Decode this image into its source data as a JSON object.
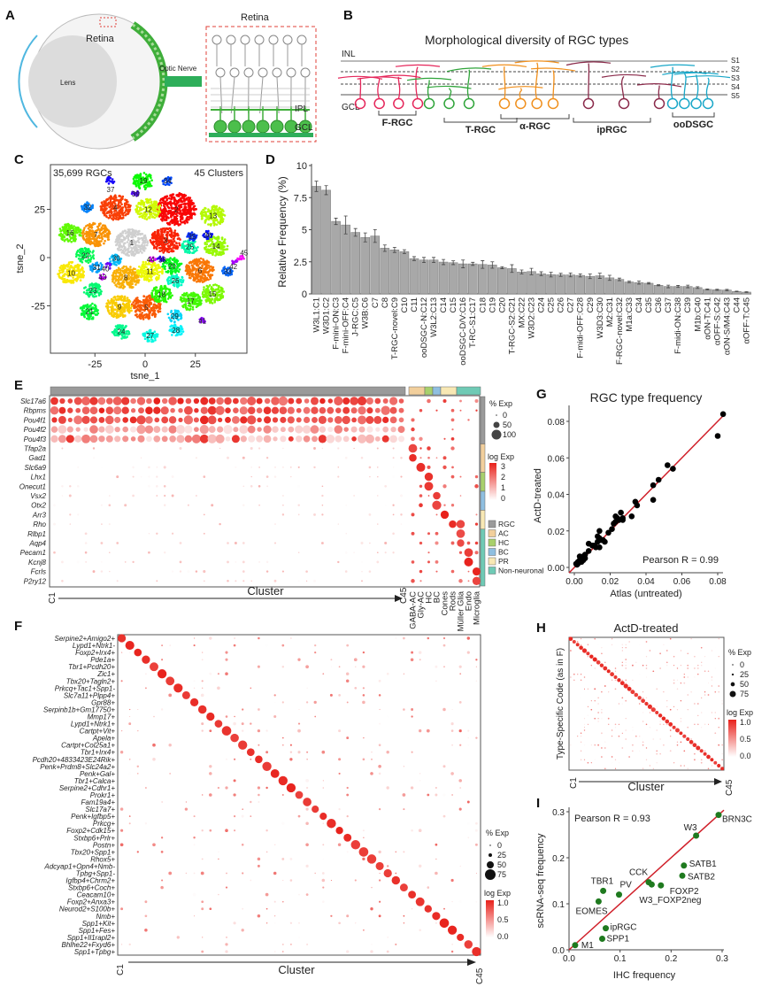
{
  "panel_letters": [
    "A",
    "B",
    "C",
    "D",
    "E",
    "F",
    "G",
    "H",
    "I"
  ],
  "panel_a": {
    "eye_label": "Retina",
    "lens_label": "Lens",
    "nerve_label": "Optic Nerve",
    "inset_title": "Retina",
    "ipl_label": "IPL",
    "gcl_label": "GCL",
    "colors": {
      "retina": "#3fae3a",
      "inset_border": "#e0403a"
    }
  },
  "panel_b": {
    "title": "Morphological diversity of RGC types",
    "inl_label": "INL",
    "gcl_label": "GCL",
    "strata": [
      "S1",
      "S2",
      "S3",
      "S4",
      "S5"
    ],
    "groups": [
      {
        "name": "F-RGC",
        "color": "#e5265a"
      },
      {
        "name": "T-RGC",
        "color": "#2fa43a"
      },
      {
        "name": "α-RGC",
        "color": "#f0901e"
      },
      {
        "name": "ipRGC",
        "color": "#8a2a4a"
      },
      {
        "name": "ooDSGC",
        "color": "#19a7c8"
      }
    ]
  },
  "chart_data": [
    {
      "panel": "C",
      "type": "scatter",
      "annotations": [
        "35,699 RGCs",
        "45 Clusters"
      ],
      "xlabel": "tsne_1",
      "ylabel": "tsne_2",
      "xticks": [
        -25,
        0,
        25
      ],
      "yticks": [
        -25,
        0,
        25
      ],
      "clusters": [
        {
          "label": "1",
          "x": -6.7,
          "y": 7.8
        },
        {
          "label": "2",
          "x": 15.6,
          "y": 25
        },
        {
          "label": "3",
          "x": 10.2,
          "y": 9
        },
        {
          "label": "4",
          "x": -14.8,
          "y": 26
        },
        {
          "label": "5",
          "x": 0.6,
          "y": -25.8
        },
        {
          "label": "6",
          "x": 27.3,
          "y": -6.6
        },
        {
          "label": "7",
          "x": -24.5,
          "y": 12
        },
        {
          "label": "8",
          "x": -9.6,
          "y": -10.4
        },
        {
          "label": "9",
          "x": -12.8,
          "y": -25.5
        },
        {
          "label": "10",
          "x": -36.8,
          "y": -8
        },
        {
          "label": "11",
          "x": 2.4,
          "y": -7
        },
        {
          "label": "12",
          "x": 1.5,
          "y": 25
        },
        {
          "label": "13",
          "x": 33.8,
          "y": 21.7
        },
        {
          "label": "14",
          "x": 35.3,
          "y": 6
        },
        {
          "label": "15",
          "x": 33.5,
          "y": -18.7
        },
        {
          "label": "16",
          "x": -37.4,
          "y": 12.8
        },
        {
          "label": "17",
          "x": 22.6,
          "y": -22.5
        },
        {
          "label": "18",
          "x": 8.2,
          "y": -19
        },
        {
          "label": "19",
          "x": -0.9,
          "y": 39.8
        },
        {
          "label": "20",
          "x": 13.4,
          "y": -4.3
        },
        {
          "label": "21",
          "x": -27.6,
          "y": -27.8
        },
        {
          "label": "22",
          "x": -29.7,
          "y": 1.2
        },
        {
          "label": "23",
          "x": -26,
          "y": -17
        },
        {
          "label": "24",
          "x": -11.9,
          "y": -38.4
        },
        {
          "label": "25",
          "x": 22.3,
          "y": 5.7
        },
        {
          "label": "26",
          "x": 15,
          "y": -12
        },
        {
          "label": "27",
          "x": 2.5,
          "y": -40.4
        },
        {
          "label": "28",
          "x": 15.3,
          "y": -37.6
        },
        {
          "label": "29",
          "x": 14.7,
          "y": -30.3
        },
        {
          "label": "30",
          "x": -15.3,
          "y": -1.2
        },
        {
          "label": "31",
          "x": -24.2,
          "y": -5
        },
        {
          "label": "32",
          "x": -28.6,
          "y": 26.1
        },
        {
          "label": "33",
          "x": 41.1,
          "y": -7
        },
        {
          "label": "34",
          "x": 11.1,
          "y": 39.8
        },
        {
          "label": "35",
          "x": 23.3,
          "y": 10.9
        },
        {
          "label": "36",
          "x": 31.2,
          "y": 11.8
        },
        {
          "label": "37",
          "x": -17.2,
          "y": 39.9
        },
        {
          "label": "38",
          "x": 7.7,
          "y": -1.2
        },
        {
          "label": "39",
          "x": -4.7,
          "y": 33
        },
        {
          "label": "40",
          "x": -18.5,
          "y": -4.4
        },
        {
          "label": "41",
          "x": 28.5,
          "y": -32.7
        },
        {
          "label": "42",
          "x": 44.8,
          "y": -2.4
        },
        {
          "label": "43",
          "x": -21.2,
          "y": -10
        },
        {
          "label": "44",
          "x": 3.6,
          "y": -0.9
        },
        {
          "label": "45",
          "x": 47.5,
          "y": -0.3
        }
      ]
    },
    {
      "panel": "D",
      "type": "bar",
      "ylabel": "Relative Frequency (%)",
      "ylim": [
        0,
        10
      ],
      "yticks": [
        "0",
        "2.5",
        "5",
        "7.5",
        "10"
      ],
      "categories": [
        "W3L1:C1",
        "W3D1:C2",
        "F-mini-ON:C3",
        "F-mini-OFF:C4",
        "J-RGC:C5",
        "W3B:C6",
        "C7",
        "C8",
        "T-RGC-novel:C9",
        "C10",
        "C11",
        "ooDSGC-N:C12",
        "W3L2:C13",
        "C14",
        "C15",
        "ooDSGC-D/V:C16",
        "T-RC-S1:C17",
        "C18",
        "C19",
        "C20",
        "T-RGC-S2:C21",
        "MX:C22",
        "W3D2:C23",
        "C24",
        "C25",
        "C26",
        "C27",
        "F-midi-OFF:C28",
        "C29",
        "W3D3:C30",
        "M2:C31",
        "F-RGC-novel:C32",
        "M1a:C33",
        "C34",
        "C35",
        "C36",
        "C37",
        "F-midi-ON:C38",
        "C39",
        "M1b:C40",
        "αON-T:C41",
        "αOFF-S:C42",
        "αON-S/M4:C43",
        "C44",
        "αOFF-T:C45"
      ],
      "values": [
        8.38,
        8.08,
        5.65,
        5.37,
        4.79,
        4.4,
        4.51,
        3.56,
        3.43,
        3.29,
        2.75,
        2.64,
        2.64,
        2.48,
        2.43,
        2.34,
        2.34,
        2.29,
        2.25,
        2.04,
        1.97,
        1.71,
        1.74,
        1.57,
        1.5,
        1.48,
        1.48,
        1.44,
        1.37,
        1.41,
        1.25,
        1.13,
        0.93,
        0.88,
        0.83,
        0.67,
        0.58,
        0.58,
        0.58,
        0.49,
        0.35,
        0.32,
        0.3,
        0.19,
        0.14
      ],
      "errors": [
        0.4,
        0.35,
        0.25,
        0.7,
        0.3,
        0.35,
        0.5,
        0.25,
        0.2,
        0.15,
        0.15,
        0.2,
        0.2,
        0.2,
        0.15,
        0.3,
        0.12,
        0.3,
        0.25,
        0.08,
        0.3,
        0.15,
        0.25,
        0.15,
        0.18,
        0.12,
        0.15,
        0.12,
        0.18,
        0.2,
        0.2,
        0.1,
        0.06,
        0.12,
        0.06,
        0.04,
        0.1,
        0.08,
        0.1,
        0.07,
        0.04,
        0.04,
        0.05,
        0.02,
        0.03
      ],
      "bar_color": "#a8a8a8",
      "label_color_named": "#1aa67a"
    },
    {
      "panel": "E",
      "type": "heatmap",
      "subtype": "dotplot",
      "genes": [
        "Slc17a6",
        "Rbpms",
        "Pou4f1",
        "Pou4f2",
        "Pou4f3",
        "Tfap2a",
        "Gad1",
        "Slc6a9",
        "Lhx1",
        "Onecut1",
        "Vsx2",
        "Otx2",
        "Arr3",
        "Rho",
        "Rlbp1",
        "Aqp4",
        "Pecam1",
        "Kcnj8",
        "Fcrls",
        "P2ry12"
      ],
      "xlabel": "Cluster",
      "x_start": "C1",
      "x_end": "C45",
      "other_columns": [
        "GABA-AC",
        "Gly-AC",
        "HC",
        "BC",
        "Cones",
        "Rods",
        "Müller Glia",
        "Endo",
        "Microglia"
      ],
      "size_legend": {
        "title": "% Exp",
        "values": [
          "0",
          "50",
          "100"
        ]
      },
      "color_legend": {
        "title": "log Exp",
        "values": [
          "3",
          "2",
          "1",
          "0"
        ],
        "low": "#ffffff",
        "high": "#e8211b"
      },
      "classes": [
        {
          "name": "RGC",
          "color": "#9a9a9a"
        },
        {
          "name": "AC",
          "color": "#f2cf9c"
        },
        {
          "name": "HC",
          "color": "#a8d06c"
        },
        {
          "name": "BC",
          "color": "#8fbfe0"
        },
        {
          "name": "PR",
          "color": "#f8e8b4"
        },
        {
          "name": "Non-neuronal",
          "color": "#6fcab5"
        }
      ]
    },
    {
      "panel": "F",
      "type": "heatmap",
      "subtype": "dotplot",
      "rows": [
        "Serpine2+Amigo2+",
        "Lypd1+Ntrk1-",
        "Foxp2+Irx4+",
        "Pde1a+",
        "Tbr1+Pcdh20+",
        "Zic1+",
        "Tbx20+Tagln2+",
        "Prkcq+Tac1+Spp1-",
        "Slc7a11+Plpp4+",
        "Gpr88+",
        "Serpinb1b+Gm17750+",
        "Mmp17+",
        "Lypd1+Ntrk1+",
        "Cartpt+Vit+",
        "Apela+",
        "Cartpt+Col25a1+",
        "Tbr1+Irx4+",
        "Pcdh20+4833423E24Rik+",
        "Penk+Prdm8+Slc24a2+",
        "Penk+Gal+",
        "Tbr1+Calca+",
        "Serpine2+Cdhr1+",
        "Prokr1+",
        "Fam19a4+",
        "Slc17a7+",
        "Penk+Igfbp5+",
        "Prkcg+",
        "Foxp2+Cdk15+",
        "Stxbp6+Prlr+",
        "Postn+",
        "Tbx20+Spp1+",
        "Rhox5+",
        "Adcyap1+Opn4+Nmb-",
        "Tpbg+Spp1-",
        "Igfbp4+Chrm2+",
        "Stxbp6+Coch+",
        "Ceacam10+",
        "Foxp2+Anxa3+",
        "Neurod2+S100b+",
        "Nmb+",
        "Spp1+Kit+",
        "Spp1+Fes+",
        "Spp1+Il1rapl2+",
        "Bhlhe22+Fxyd6+",
        "Spp1+Tpbg+"
      ],
      "xlabel": "Cluster",
      "x_start": "C1",
      "x_end": "C45",
      "size_legend": {
        "title": "% Exp",
        "values": [
          "0",
          "25",
          "50",
          "75"
        ]
      },
      "color_legend": {
        "title": "log Exp",
        "values": [
          "1.0",
          "0.5",
          "0.0"
        ]
      }
    },
    {
      "panel": "G",
      "type": "scatter",
      "title": "RGC type frequency",
      "xlabel": "Atlas (untreated)",
      "ylabel": "ActD-treated",
      "xticks": [
        "0.00",
        "0.02",
        "0.04",
        "0.06",
        "0.08"
      ],
      "yticks": [
        "0.00",
        "0.02",
        "0.04",
        "0.06",
        "0.08"
      ],
      "annotation": "Pearson R = 0.99",
      "line_color": "#d0202a",
      "points": [
        [
          0.083,
          0.084
        ],
        [
          0.08,
          0.072
        ],
        [
          0.055,
          0.054
        ],
        [
          0.052,
          0.056
        ],
        [
          0.047,
          0.048
        ],
        [
          0.044,
          0.045
        ],
        [
          0.044,
          0.037
        ],
        [
          0.034,
          0.036
        ],
        [
          0.035,
          0.034
        ],
        [
          0.032,
          0.028
        ],
        [
          0.026,
          0.03
        ],
        [
          0.027,
          0.026
        ],
        [
          0.023,
          0.028
        ],
        [
          0.023,
          0.025
        ],
        [
          0.024,
          0.027
        ],
        [
          0.025,
          0.026
        ],
        [
          0.021,
          0.021
        ],
        [
          0.019,
          0.019
        ],
        [
          0.016,
          0.015
        ],
        [
          0.014,
          0.02
        ],
        [
          0.014,
          0.016
        ],
        [
          0.013,
          0.017
        ],
        [
          0.013,
          0.014
        ],
        [
          0.014,
          0.011
        ],
        [
          0.012,
          0.011
        ],
        [
          0.01,
          0.012
        ],
        [
          0.008,
          0.013
        ],
        [
          0.008,
          0.009
        ],
        [
          0.006,
          0.007
        ],
        [
          0.005,
          0.006
        ],
        [
          0.005,
          0.004
        ],
        [
          0.004,
          0.005
        ],
        [
          0.003,
          0.004
        ],
        [
          0.003,
          0.006
        ],
        [
          0.002,
          0.003
        ],
        [
          0.001,
          0.002
        ],
        [
          0.0015,
          0.0015
        ],
        [
          0.002,
          0.002
        ],
        [
          0.006,
          0.005
        ],
        [
          0.015,
          0.015
        ],
        [
          0.017,
          0.014
        ],
        [
          0.027,
          0.027
        ],
        [
          0.022,
          0.024
        ],
        [
          0.011,
          0.012
        ],
        [
          0.004,
          0.003
        ]
      ]
    },
    {
      "panel": "H",
      "type": "heatmap",
      "subtype": "dotplot",
      "title": "ActD-treated",
      "ylabel": "Type-Specific Code (as in F)",
      "xlabel": "Cluster",
      "x_start": "C1",
      "x_end": "C45",
      "size_legend": {
        "title": "% Exp",
        "values": [
          "0",
          "25",
          "50",
          "75"
        ]
      },
      "color_legend": {
        "title": "log Exp",
        "values": [
          "1.0",
          "0.5",
          "0.0"
        ]
      }
    },
    {
      "panel": "I",
      "type": "scatter",
      "xlabel": "IHC frequency",
      "ylabel": "scRNA-seq frequency",
      "xticks": [
        "0.0",
        "0.1",
        "0.2",
        "0.3"
      ],
      "yticks": [
        "0.0",
        "0.1",
        "0.2",
        "0.3"
      ],
      "annotation": "Pearson R = 0.93",
      "point_color": "#1f7a1f",
      "line_color": "#d0202a",
      "points": [
        {
          "label": "M1",
          "x": 0.012,
          "y": 0.01
        },
        {
          "label": "SPP1",
          "x": 0.065,
          "y": 0.024
        },
        {
          "label": "ipRGC",
          "x": 0.072,
          "y": 0.047
        },
        {
          "label": "EOMES",
          "x": 0.058,
          "y": 0.105
        },
        {
          "label": "TBR1",
          "x": 0.067,
          "y": 0.128
        },
        {
          "label": "PV",
          "x": 0.098,
          "y": 0.12
        },
        {
          "label": "CCK",
          "x": 0.156,
          "y": 0.147
        },
        {
          "label": "W3_FOXP2neg",
          "x": 0.162,
          "y": 0.142
        },
        {
          "label": "FOXP2",
          "x": 0.18,
          "y": 0.14
        },
        {
          "label": "SATB2",
          "x": 0.222,
          "y": 0.161
        },
        {
          "label": "SATB1",
          "x": 0.225,
          "y": 0.183
        },
        {
          "label": "W3",
          "x": 0.249,
          "y": 0.248
        },
        {
          "label": "BRN3C",
          "x": 0.293,
          "y": 0.293
        }
      ]
    }
  ]
}
